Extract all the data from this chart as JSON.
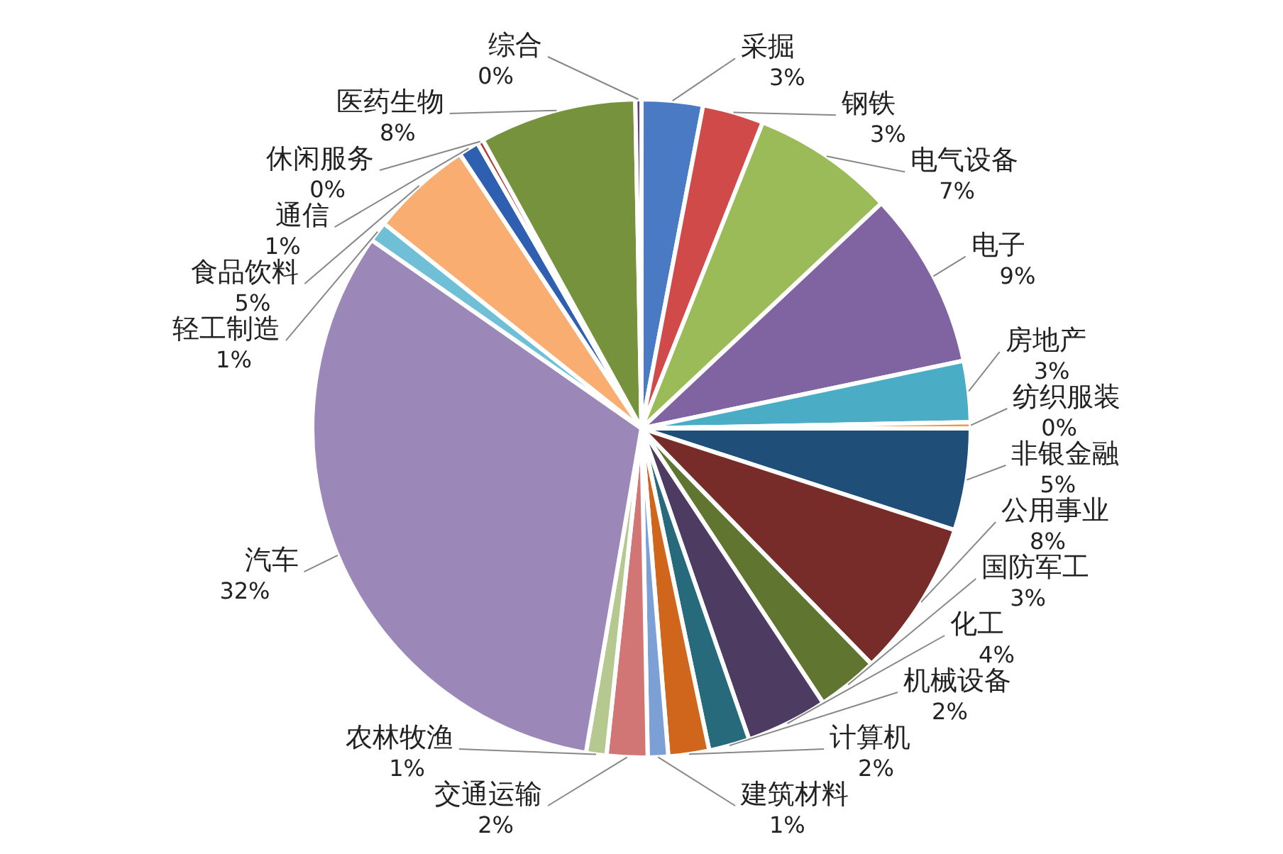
{
  "chart_data": {
    "type": "pie",
    "data_labels": true,
    "categories": [
      "采掘",
      "钢铁",
      "电气设备",
      "电子",
      "房地产",
      "纺织服装",
      "非银金融",
      "公用事业",
      "国防军工",
      "化工",
      "机械设备",
      "计算机",
      "建筑材料",
      "交通运输",
      "农林牧渔",
      "汽车",
      "轻工制造",
      "食品饮料",
      "通信",
      "休闲服务",
      "医药生物",
      "综合"
    ],
    "values": [
      3,
      3,
      7,
      8.7,
      3,
      0.3,
      5,
      7.7,
      3,
      4,
      2,
      2,
      1,
      2,
      1,
      32,
      1,
      5,
      1,
      0.3,
      7.7,
      0.3
    ],
    "value_labels": [
      "3%",
      "3%",
      "7%",
      "9%",
      "3%",
      "0%",
      "5%",
      "8%",
      "3%",
      "4%",
      "2%",
      "2%",
      "1%",
      "2%",
      "1%",
      "32%",
      "1%",
      "5%",
      "1%",
      "0%",
      "8%",
      "0%"
    ],
    "colors": [
      "#4a7ac4",
      "#d04a4a",
      "#9bbb59",
      "#8064a2",
      "#4bacc6",
      "#f79646",
      "#1f4e79",
      "#772c2a",
      "#5f7530",
      "#4d3b62",
      "#276a7c",
      "#d0661c",
      "#7ca0d6",
      "#d27575",
      "#b4c88f",
      "#9c88b8",
      "#6fc0d6",
      "#f9ad70",
      "#2e5fb0",
      "#b03535",
      "#76923c",
      "#5a3f7a"
    ]
  }
}
